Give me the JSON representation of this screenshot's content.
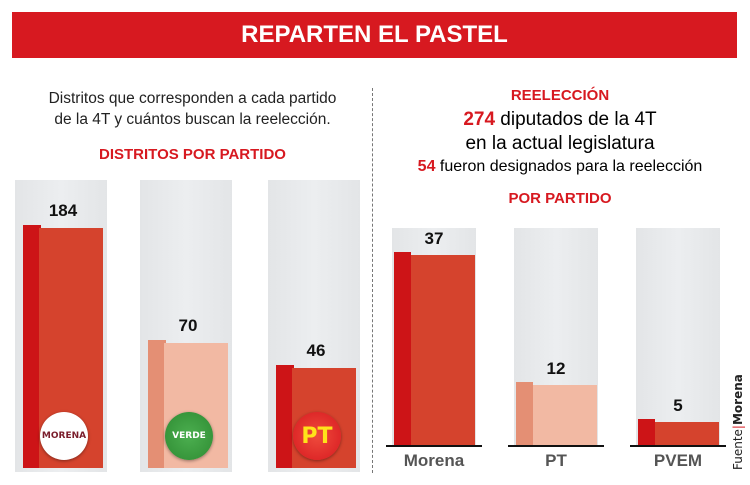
{
  "title": "REPARTEN EL PASTEL",
  "intro": [
    "Distritos que corresponden a cada partido",
    "de la 4T y cuántos buscan la reelección."
  ],
  "colors": {
    "red": "#d71920",
    "bar_dark": "#cd1417",
    "bar_front": "#d5432d",
    "bar_light_side": "#e48f74",
    "bar_light_front": "#f2b9a3"
  },
  "right_header": {
    "title": "REELECCIÓN",
    "line1_num": "274",
    "line1_text": " diputados de la 4T",
    "line2": "en la actual legislatura",
    "line3_num": "54",
    "line3_text": " fueron designados para la reelección"
  },
  "source": {
    "label": "Fuente",
    "value": "Morena"
  },
  "chart_data": [
    {
      "type": "bar",
      "title": "DISTRITOS POR PARTIDO",
      "categories": [
        "Morena",
        "PVEM",
        "PT"
      ],
      "values": [
        184,
        70,
        46
      ],
      "logos": [
        {
          "party": "Morena",
          "text": "MORENA"
        },
        {
          "party": "PVEM",
          "text": "VERDE"
        },
        {
          "party": "PT",
          "text": "PT"
        }
      ],
      "styles": [
        "dark",
        "light",
        "dark"
      ]
    },
    {
      "type": "bar",
      "title": "POR PARTIDO",
      "categories": [
        "Morena",
        "PT",
        "PVEM"
      ],
      "values": [
        37,
        12,
        5
      ],
      "styles": [
        "dark",
        "light",
        "dark"
      ]
    }
  ]
}
